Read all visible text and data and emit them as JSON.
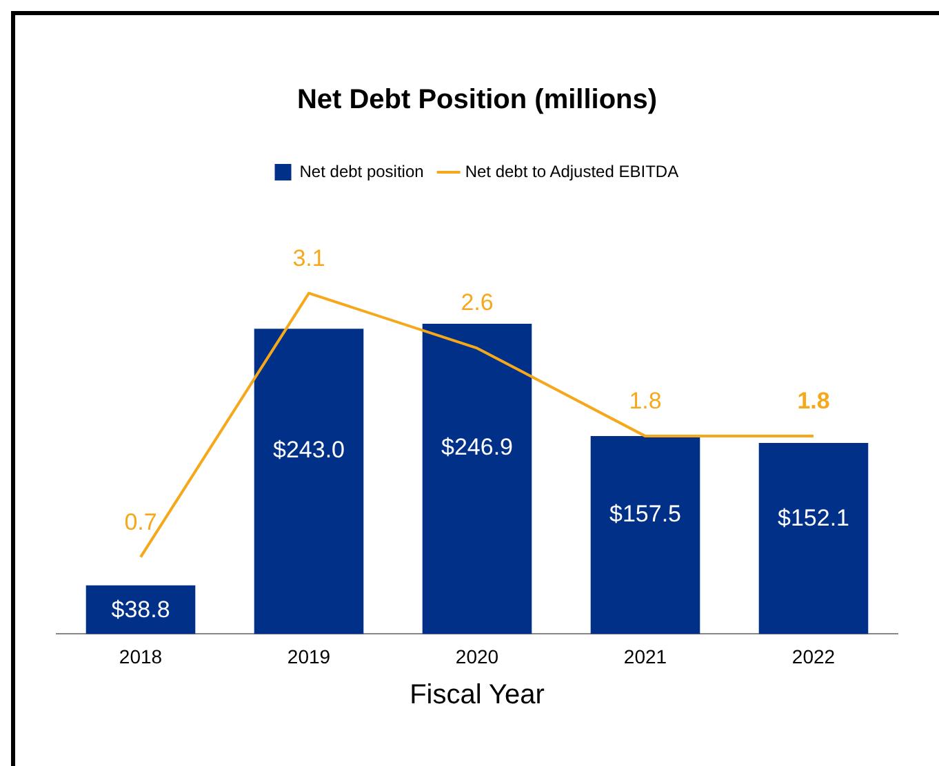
{
  "chart_data": {
    "type": "bar",
    "title": "Net Debt Position (millions)",
    "xlabel": "Fiscal Year",
    "categories": [
      "2018",
      "2019",
      "2020",
      "2021",
      "2022"
    ],
    "legend": "top",
    "tick_labels": "x",
    "grid": false,
    "series": [
      {
        "name": "Net debt position",
        "color": "#003087",
        "values": [
          38.8,
          243.0,
          246.9,
          157.5,
          152.1
        ],
        "value_labels": [
          "$38.8",
          "$243.0",
          "$246.9",
          "$157.5",
          "$152.1"
        ]
      },
      {
        "name": "Net debt to Adjusted EBITDA",
        "type": "line",
        "axis": "y2",
        "color": "#f5a81c",
        "marker": "none",
        "values": [
          0.7,
          3.1,
          2.6,
          1.8,
          1.8
        ],
        "value_labels": [
          "0.7",
          "3.1",
          "2.6",
          "1.8",
          "1.8"
        ]
      }
    ]
  }
}
